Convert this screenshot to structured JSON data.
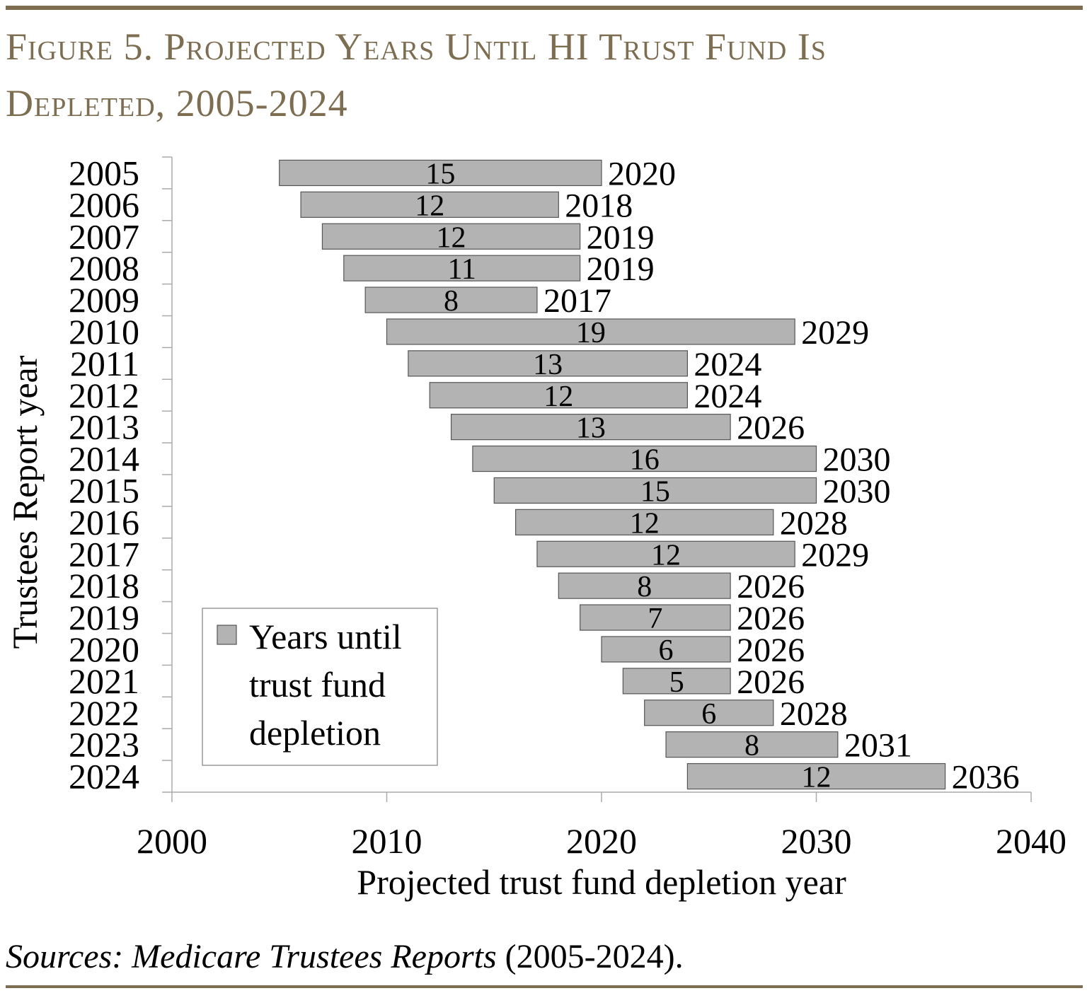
{
  "figure": {
    "title_line1": "Figure 5. Projected Years Until HI Trust Fund Is",
    "title_line2": "Depleted, 2005-2024",
    "source_italic": "Sources: Medicare Trustees Reports",
    "source_rest": " (2005-2024).",
    "accent_color": "#7d6e52"
  },
  "chart_data": {
    "type": "bar",
    "orientation": "horizontal-floating",
    "title": "Figure 5. Projected Years Until HI Trust Fund Is Depleted, 2005-2024",
    "xlabel": "Projected trust fund depletion year",
    "ylabel": "Trustees Report year",
    "xlim": [
      2000,
      2040
    ],
    "xticks": [
      "2000",
      "2010",
      "2020",
      "2030",
      "2040"
    ],
    "grid": false,
    "legend": {
      "placement": "bottom-left",
      "entries": [
        "Years until trust fund depletion"
      ],
      "lines": [
        "Years until",
        "trust fund",
        "depletion"
      ]
    },
    "bar_color": "#b3b3b3",
    "categories": [
      "2005",
      "2006",
      "2007",
      "2008",
      "2009",
      "2010",
      "2011",
      "2012",
      "2013",
      "2014",
      "2015",
      "2016",
      "2017",
      "2018",
      "2019",
      "2020",
      "2021",
      "2022",
      "2023",
      "2024"
    ],
    "series": [
      {
        "name": "Years until trust fund depletion",
        "start": [
          2005,
          2006,
          2007,
          2008,
          2009,
          2010,
          2011,
          2012,
          2013,
          2014,
          2015,
          2016,
          2017,
          2018,
          2019,
          2020,
          2021,
          2022,
          2023,
          2024
        ],
        "end": [
          2020,
          2018,
          2019,
          2019,
          2017,
          2029,
          2024,
          2024,
          2026,
          2030,
          2030,
          2028,
          2029,
          2026,
          2026,
          2026,
          2026,
          2028,
          2031,
          2036
        ],
        "values": [
          15,
          12,
          12,
          11,
          8,
          19,
          13,
          12,
          13,
          16,
          15,
          12,
          12,
          8,
          7,
          6,
          5,
          6,
          8,
          12
        ]
      }
    ]
  }
}
